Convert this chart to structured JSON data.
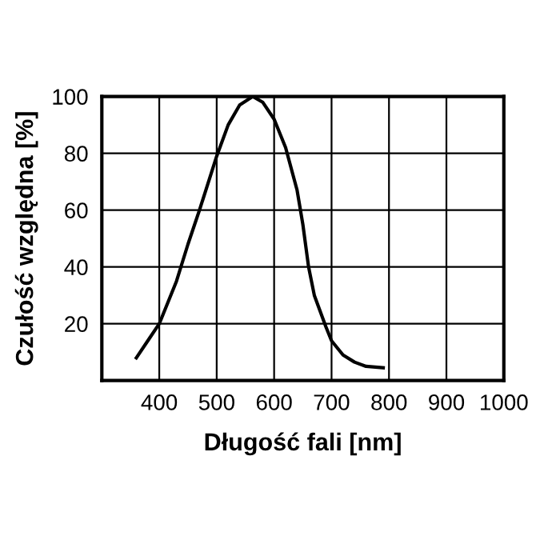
{
  "chart_data": {
    "type": "line",
    "xlabel": "Długość fali [nm]",
    "ylabel": "Czułość względna [%]",
    "series": [
      {
        "color": "#000000",
        "x": [
          360,
          380,
          400,
          430,
          450,
          470,
          500,
          520,
          540,
          563,
          580,
          600,
          620,
          640,
          650,
          660,
          670,
          690,
          700,
          720,
          740,
          760,
          790
        ],
        "values": [
          8,
          14,
          20,
          35,
          48,
          60,
          79,
          90,
          97,
          100,
          98,
          92,
          82,
          67,
          55,
          40,
          30,
          19,
          14,
          9,
          6.5,
          5,
          4.5
        ]
      }
    ],
    "xlim": [
      300,
      1000
    ],
    "ylim": [
      0,
      100
    ],
    "xticks": [
      400,
      500,
      600,
      700,
      800,
      900,
      1000
    ],
    "yticks": [
      20,
      40,
      60,
      80,
      100
    ],
    "grid": true,
    "legend": false,
    "marker": "none",
    "line_style": "solid"
  }
}
